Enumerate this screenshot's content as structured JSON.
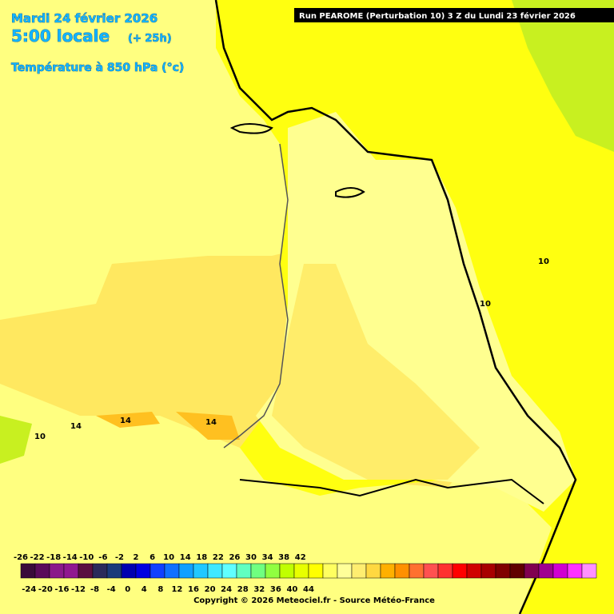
{
  "header": {
    "date": "Mardi 24 février 2026",
    "time": "5:00 locale",
    "offset": "(+ 25h)",
    "field": "Température à 850 hPa (°c)",
    "run": "Run PEAROME (Perturbation 10) 3 Z du Lundi 23 février 2026"
  },
  "contour_labels": [
    "10",
    "10",
    "14",
    "14",
    "14",
    "10"
  ],
  "legend": {
    "labels_top": [
      -26,
      -22,
      -18,
      -14,
      -10,
      -6,
      -2,
      2,
      6,
      10,
      14,
      18,
      22,
      26,
      30,
      34,
      38,
      42
    ],
    "labels_bottom": [
      -24,
      -20,
      -16,
      -12,
      -8,
      -4,
      0,
      4,
      8,
      12,
      16,
      20,
      24,
      28,
      32,
      36,
      40,
      44
    ],
    "colors": [
      "#3a0a3a",
      "#5a0a5a",
      "#8a1a8a",
      "#901890",
      "#5a1040",
      "#2a2a5a",
      "#1a3a7a",
      "#0000b0",
      "#0000e0",
      "#1040ff",
      "#1070ff",
      "#10a0ff",
      "#20c8ff",
      "#40e8ff",
      "#60ffff",
      "#60ffc0",
      "#70ff80",
      "#90ff40",
      "#c0ff00",
      "#e8ff00",
      "#ffff00",
      "#ffff60",
      "#ffff99",
      "#ffee70",
      "#ffd840",
      "#ffb000",
      "#ff9000",
      "#ff7030",
      "#ff5050",
      "#ff3030",
      "#ff0000",
      "#d00000",
      "#a80000",
      "#800000",
      "#600000",
      "#800050",
      "#a00090",
      "#d000d0",
      "#ff30ff",
      "#ff90ff"
    ]
  },
  "footer": "Copyright © 2026 Meteociel.fr - Source Météo-France"
}
